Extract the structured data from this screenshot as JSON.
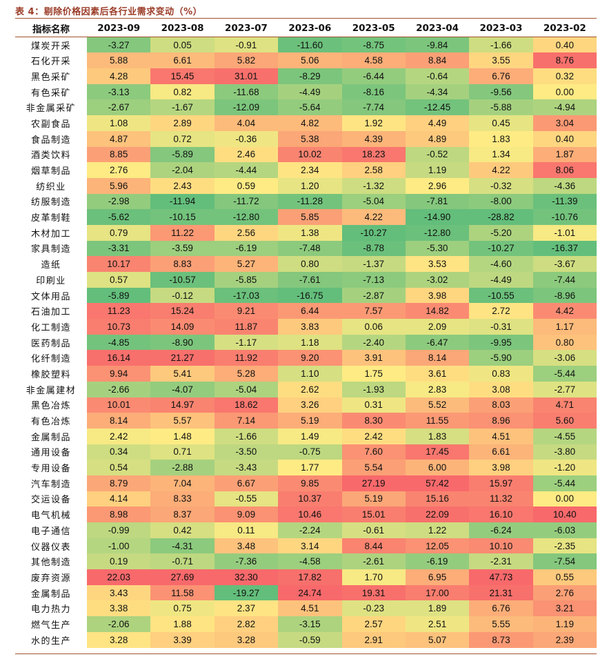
{
  "title": "表 4：剔除价格因素后各行业需求变动（%）",
  "table": {
    "corner_label": "指标名称",
    "columns": [
      "2023-09",
      "2023-08",
      "2023-07",
      "2023-06",
      "2023-05",
      "2023-04",
      "2023-03",
      "2023-02"
    ],
    "rows": [
      {
        "name": "煤炭开采",
        "values": [
          "-3.27",
          "0.05",
          "-0.91",
          "-11.60",
          "-8.75",
          "-9.84",
          "-1.66",
          "0.40"
        ]
      },
      {
        "name": "石化开采",
        "values": [
          "5.88",
          "6.61",
          "5.82",
          "5.06",
          "4.58",
          "8.84",
          "3.55",
          "8.76"
        ]
      },
      {
        "name": "黑色采矿",
        "values": [
          "4.28",
          "15.45",
          "31.01",
          "-8.29",
          "-6.44",
          "-0.64",
          "6.76",
          "0.32"
        ]
      },
      {
        "name": "有色采矿",
        "values": [
          "-3.13",
          "0.82",
          "-11.68",
          "-4.49",
          "-8.16",
          "-4.34",
          "-9.56",
          "0.00"
        ]
      },
      {
        "name": "非金属采矿",
        "values": [
          "-2.67",
          "-1.67",
          "-12.09",
          "-5.64",
          "-7.74",
          "-12.45",
          "-5.88",
          "-4.94"
        ]
      },
      {
        "name": "农副食品",
        "values": [
          "1.08",
          "2.89",
          "4.04",
          "4.82",
          "1.92",
          "4.49",
          "0.45",
          "3.04"
        ]
      },
      {
        "name": "食品制造",
        "values": [
          "4.87",
          "0.72",
          "-0.36",
          "5.38",
          "4.39",
          "4.89",
          "1.83",
          "0.40"
        ]
      },
      {
        "name": "酒类饮料",
        "values": [
          "8.85",
          "-5.89",
          "2.46",
          "10.02",
          "18.23",
          "-0.52",
          "1.34",
          "1.87"
        ]
      },
      {
        "name": "烟草制品",
        "values": [
          "2.76",
          "-2.04",
          "-4.44",
          "2.34",
          "2.58",
          "1.19",
          "4.22",
          "8.06"
        ]
      },
      {
        "name": "纺织业",
        "values": [
          "5.96",
          "2.43",
          "0.59",
          "1.20",
          "-1.32",
          "2.96",
          "-0.32",
          "-4.36"
        ]
      },
      {
        "name": "纺服制造",
        "values": [
          "-2.98",
          "-11.94",
          "-11.72",
          "-11.28",
          "-5.04",
          "-7.81",
          "-8.00",
          "-11.39"
        ]
      },
      {
        "name": "皮革制鞋",
        "values": [
          "-5.62",
          "-10.15",
          "-12.80",
          "5.85",
          "4.22",
          "-14.90",
          "-28.82",
          "-10.76"
        ]
      },
      {
        "name": "木材加工",
        "values": [
          "0.79",
          "11.22",
          "2.56",
          "1.38",
          "-10.27",
          "-12.80",
          "-5.20",
          "-1.01"
        ]
      },
      {
        "name": "家具制造",
        "values": [
          "-3.31",
          "-3.59",
          "-6.19",
          "-7.48",
          "-8.78",
          "-5.30",
          "-10.27",
          "-16.37"
        ]
      },
      {
        "name": "造纸",
        "values": [
          "10.17",
          "8.83",
          "5.27",
          "0.80",
          "-1.37",
          "3.53",
          "-4.60",
          "-3.67"
        ]
      },
      {
        "name": "印刷业",
        "values": [
          "0.57",
          "-10.57",
          "-5.85",
          "-7.61",
          "-7.13",
          "-3.02",
          "-4.49",
          "-7.44"
        ]
      },
      {
        "name": "文体用品",
        "values": [
          "-5.89",
          "-0.12",
          "-17.03",
          "-16.75",
          "-2.87",
          "3.98",
          "-10.55",
          "-8.96"
        ]
      },
      {
        "name": "石油加工",
        "values": [
          "11.23",
          "15.24",
          "9.21",
          "6.44",
          "7.57",
          "14.82",
          "2.72",
          "4.42"
        ]
      },
      {
        "name": "化工制造",
        "values": [
          "10.73",
          "14.09",
          "11.87",
          "3.83",
          "0.06",
          "2.09",
          "-0.31",
          "1.17"
        ]
      },
      {
        "name": "医药制品",
        "values": [
          "-4.85",
          "-8.90",
          "-1.17",
          "1.18",
          "-2.40",
          "-6.47",
          "-9.95",
          "0.80"
        ]
      },
      {
        "name": "化纤制造",
        "values": [
          "16.14",
          "21.27",
          "11.92",
          "9.20",
          "3.91",
          "8.14",
          "-5.90",
          "-3.06"
        ]
      },
      {
        "name": "橡胶塑料",
        "values": [
          "9.94",
          "5.41",
          "5.28",
          "1.10",
          "1.75",
          "3.61",
          "0.83",
          "-5.44"
        ]
      },
      {
        "name": "非金属建材",
        "values": [
          "-2.66",
          "-4.07",
          "-5.04",
          "2.62",
          "-1.93",
          "2.83",
          "3.08",
          "-2.77"
        ]
      },
      {
        "name": "黑色冶炼",
        "values": [
          "10.01",
          "14.97",
          "18.62",
          "3.26",
          "0.31",
          "5.52",
          "8.03",
          "4.71"
        ]
      },
      {
        "name": "有色冶炼",
        "values": [
          "8.14",
          "5.57",
          "7.14",
          "5.19",
          "8.30",
          "11.55",
          "8.96",
          "5.60"
        ]
      },
      {
        "name": "金属制品",
        "values": [
          "2.42",
          "1.48",
          "-1.66",
          "1.49",
          "2.42",
          "1.83",
          "4.51",
          "-4.55"
        ]
      },
      {
        "name": "通用设备",
        "values": [
          "0.34",
          "0.71",
          "-3.50",
          "-0.75",
          "7.60",
          "17.45",
          "6.61",
          "-3.80"
        ]
      },
      {
        "name": "专用设备",
        "values": [
          "0.54",
          "-2.88",
          "-3.43",
          "1.77",
          "5.54",
          "6.00",
          "3.98",
          "-1.20"
        ]
      },
      {
        "name": "汽车制造",
        "values": [
          "8.79",
          "7.04",
          "6.67",
          "9.85",
          "27.19",
          "57.42",
          "15.97",
          "-5.44"
        ]
      },
      {
        "name": "交运设备",
        "values": [
          "4.14",
          "8.33",
          "-0.55",
          "10.37",
          "5.19",
          "15.16",
          "11.32",
          "0.00"
        ]
      },
      {
        "name": "电气机械",
        "values": [
          "8.98",
          "8.37",
          "9.09",
          "10.46",
          "15.01",
          "22.09",
          "16.10",
          "10.40"
        ]
      },
      {
        "name": "电子通信",
        "values": [
          "-0.99",
          "0.42",
          "0.11",
          "-2.24",
          "-0.61",
          "1.22",
          "-6.24",
          "-6.03"
        ]
      },
      {
        "name": "仪器仪表",
        "values": [
          "-1.00",
          "-4.31",
          "3.48",
          "3.14",
          "8.44",
          "12.05",
          "10.10",
          "-2.35"
        ]
      },
      {
        "name": "其他制造",
        "values": [
          "0.19",
          "-0.71",
          "-7.36",
          "-4.58",
          "-2.61",
          "-6.19",
          "-2.31",
          "-7.54"
        ]
      },
      {
        "name": "废弃资源",
        "values": [
          "22.03",
          "27.69",
          "32.30",
          "17.82",
          "1.70",
          "6.95",
          "47.73",
          "0.55"
        ]
      },
      {
        "name": "金属制品",
        "values": [
          "3.43",
          "11.58",
          "-19.27",
          "24.74",
          "19.31",
          "17.00",
          "21.31",
          "2.76"
        ]
      },
      {
        "name": "电力热力",
        "values": [
          "3.38",
          "0.75",
          "2.37",
          "4.51",
          "-0.23",
          "1.89",
          "6.76",
          "3.21"
        ]
      },
      {
        "name": "燃气生产",
        "values": [
          "-2.06",
          "1.88",
          "2.82",
          "-3.15",
          "2.57",
          "2.51",
          "5.55",
          "1.19"
        ]
      },
      {
        "name": "水的生产",
        "values": [
          "3.28",
          "3.39",
          "3.28",
          "-0.59",
          "2.91",
          "5.07",
          "8.73",
          "2.39"
        ]
      }
    ]
  },
  "colors": {
    "low": "#63be7b",
    "mid": "#ffeb84",
    "high": "#f8696b",
    "title": "#9b3c28",
    "rule": "#a0522d"
  }
}
